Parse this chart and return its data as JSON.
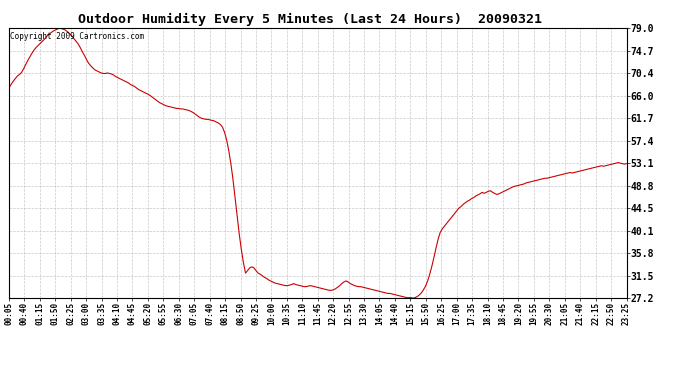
{
  "title": "Outdoor Humidity Every 5 Minutes (Last 24 Hours)  20090321",
  "copyright": "Copyright 2009 Cartronics.com",
  "yticks": [
    27.2,
    31.5,
    35.8,
    40.1,
    44.5,
    48.8,
    53.1,
    57.4,
    61.7,
    66.0,
    70.4,
    74.7,
    79.0
  ],
  "ymin": 27.2,
  "ymax": 79.0,
  "line_color": "#cc0000",
  "background_color": "#ffffff",
  "grid_color": "#bbbbbb",
  "xtick_labels": [
    "00:05",
    "00:40",
    "01:15",
    "01:50",
    "02:25",
    "03:00",
    "03:35",
    "04:10",
    "04:45",
    "05:20",
    "05:55",
    "06:30",
    "07:05",
    "07:40",
    "08:15",
    "08:50",
    "09:25",
    "10:00",
    "10:35",
    "11:10",
    "11:45",
    "12:20",
    "12:55",
    "13:30",
    "14:05",
    "14:40",
    "15:15",
    "15:50",
    "16:25",
    "17:00",
    "17:35",
    "18:10",
    "18:45",
    "19:20",
    "19:55",
    "20:30",
    "21:05",
    "21:40",
    "22:15",
    "22:50",
    "23:25"
  ],
  "humidity_values": [
    67.5,
    68.2,
    68.8,
    69.3,
    69.8,
    70.1,
    70.5,
    71.2,
    72.0,
    72.8,
    73.5,
    74.2,
    74.8,
    75.3,
    75.7,
    76.1,
    76.5,
    76.9,
    77.4,
    77.8,
    78.1,
    78.4,
    78.6,
    78.8,
    79.0,
    78.9,
    78.8,
    78.6,
    78.3,
    77.9,
    77.5,
    77.0,
    76.5,
    76.0,
    75.3,
    74.5,
    73.8,
    73.0,
    72.3,
    71.8,
    71.4,
    71.0,
    70.8,
    70.6,
    70.4,
    70.3,
    70.3,
    70.4,
    70.3,
    70.2,
    70.0,
    69.7,
    69.5,
    69.3,
    69.1,
    68.9,
    68.7,
    68.5,
    68.2,
    68.0,
    67.8,
    67.5,
    67.2,
    67.0,
    66.8,
    66.6,
    66.4,
    66.2,
    65.9,
    65.6,
    65.3,
    65.0,
    64.7,
    64.5,
    64.3,
    64.1,
    64.0,
    63.9,
    63.8,
    63.7,
    63.6,
    63.6,
    63.5,
    63.5,
    63.4,
    63.3,
    63.2,
    63.0,
    62.8,
    62.5,
    62.2,
    61.9,
    61.7,
    61.6,
    61.5,
    61.5,
    61.4,
    61.3,
    61.2,
    61.0,
    60.8,
    60.5,
    60.0,
    59.0,
    57.5,
    55.5,
    53.0,
    50.0,
    46.5,
    43.0,
    39.5,
    36.5,
    34.0,
    32.0,
    32.5,
    33.0,
    33.2,
    33.0,
    32.5,
    32.0,
    31.8,
    31.5,
    31.2,
    31.0,
    30.7,
    30.5,
    30.3,
    30.1,
    30.0,
    29.9,
    29.8,
    29.7,
    29.6,
    29.6,
    29.7,
    29.8,
    30.0,
    29.8,
    29.7,
    29.6,
    29.5,
    29.4,
    29.4,
    29.5,
    29.6,
    29.5,
    29.4,
    29.3,
    29.2,
    29.1,
    29.0,
    28.9,
    28.8,
    28.7,
    28.7,
    28.8,
    29.0,
    29.3,
    29.6,
    30.0,
    30.3,
    30.5,
    30.3,
    30.0,
    29.8,
    29.6,
    29.5,
    29.4,
    29.4,
    29.3,
    29.2,
    29.1,
    29.0,
    28.9,
    28.8,
    28.7,
    28.6,
    28.5,
    28.4,
    28.3,
    28.2,
    28.1,
    28.1,
    28.0,
    27.9,
    27.8,
    27.7,
    27.6,
    27.5,
    27.4,
    27.3,
    27.3,
    27.3,
    27.2,
    27.3,
    27.5,
    27.8,
    28.2,
    28.8,
    29.5,
    30.5,
    31.8,
    33.3,
    35.0,
    36.8,
    38.5,
    39.8,
    40.5,
    41.0,
    41.5,
    42.0,
    42.5,
    43.0,
    43.5,
    44.0,
    44.5,
    44.8,
    45.2,
    45.5,
    45.8,
    46.0,
    46.3,
    46.5,
    46.8,
    47.0,
    47.2,
    47.5,
    47.3,
    47.5,
    47.7,
    47.8,
    47.5,
    47.3,
    47.1,
    47.2,
    47.4,
    47.6,
    47.8,
    48.0,
    48.2,
    48.4,
    48.6,
    48.7,
    48.8,
    48.9,
    49.0,
    49.1,
    49.3,
    49.4,
    49.5,
    49.6,
    49.7,
    49.8,
    49.9,
    50.0,
    50.1,
    50.2,
    50.2,
    50.3,
    50.4,
    50.5,
    50.6,
    50.7,
    50.8,
    50.9,
    51.0,
    51.1,
    51.2,
    51.3,
    51.2,
    51.3,
    51.4,
    51.5,
    51.6,
    51.7,
    51.8,
    51.9,
    52.0,
    52.1,
    52.2,
    52.3,
    52.4,
    52.5,
    52.6,
    52.5,
    52.6,
    52.7,
    52.8,
    52.9,
    53.0,
    53.1,
    53.2,
    53.1,
    53.0,
    52.9,
    53.0
  ]
}
